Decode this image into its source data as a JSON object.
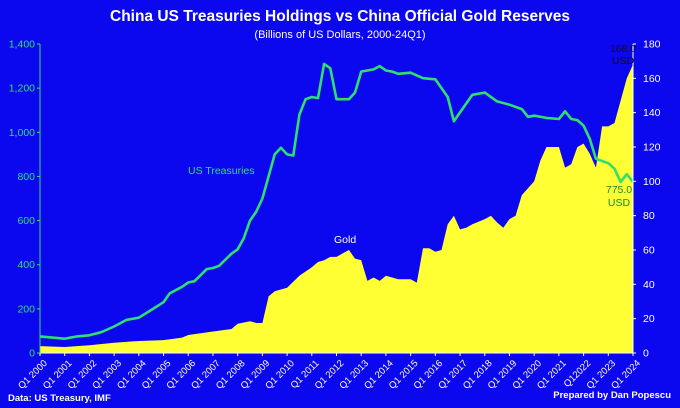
{
  "chart_data": {
    "type": "line+area",
    "title": "China US Treasuries Holdings vs China Official Gold Reserves",
    "subtitle": "(Billions of US Dollars, 2000-24Q1)",
    "left_axis": {
      "ylim": [
        0,
        1400
      ],
      "ticks": [
        "0",
        "200",
        "400",
        "600",
        "800",
        "1,000",
        "1,200",
        "1,400"
      ],
      "color": "#2fe06a"
    },
    "right_axis": {
      "ylim": [
        0,
        180
      ],
      "ticks": [
        "0",
        "20",
        "40",
        "60",
        "80",
        "100",
        "120",
        "140",
        "160",
        "180"
      ],
      "color": "#ffffff"
    },
    "x_ticks": [
      "Q1 2000",
      "Q1 2001",
      "Q1 2002",
      "Q1 2003",
      "Q1 2004",
      "Q1 2005",
      "Q1 2006",
      "Q1 2007",
      "Q1 2008",
      "Q1 2009",
      "Q1 2010",
      "Q1 2011",
      "Q1 2012",
      "Q1 2013",
      "Q1 2014",
      "Q1 2015",
      "Q1 2016",
      "Q1 2017",
      "Q1 2018",
      "Q1 2019",
      "Q1 2020",
      "Q1 2021",
      "Q12022",
      "Q1 2023",
      "Q1 2024"
    ],
    "x_range": [
      2000.0,
      2024.0
    ],
    "series": [
      {
        "name": "US Treasuries",
        "axis": "left",
        "style": "line",
        "color": "#2fe06a",
        "x": [
          2000.0,
          2000.5,
          2001.0,
          2001.5,
          2002.0,
          2002.5,
          2003.0,
          2003.5,
          2004.0,
          2004.5,
          2005.0,
          2005.25,
          2005.75,
          2006.0,
          2006.25,
          2006.75,
          2007.0,
          2007.25,
          2007.75,
          2008.0,
          2008.25,
          2008.5,
          2008.75,
          2009.0,
          2009.25,
          2009.5,
          2009.75,
          2010.0,
          2010.25,
          2010.5,
          2010.75,
          2011.0,
          2011.25,
          2011.5,
          2011.75,
          2012.0,
          2012.5,
          2012.75,
          2013.0,
          2013.5,
          2013.75,
          2014.0,
          2014.25,
          2014.5,
          2015.0,
          2015.5,
          2016.0,
          2016.5,
          2016.75,
          2017.0,
          2017.5,
          2018.0,
          2018.5,
          2019.0,
          2019.5,
          2019.75,
          2020.0,
          2020.5,
          2021.0,
          2021.25,
          2021.5,
          2021.75,
          2022.0,
          2022.25,
          2022.5,
          2022.75,
          2023.0,
          2023.25,
          2023.5,
          2023.75,
          2024.0
        ],
        "values": [
          75,
          70,
          65,
          75,
          80,
          95,
          120,
          150,
          160,
          195,
          230,
          270,
          300,
          320,
          325,
          380,
          385,
          395,
          450,
          470,
          520,
          600,
          640,
          700,
          800,
          900,
          930,
          900,
          895,
          1080,
          1150,
          1160,
          1155,
          1310,
          1290,
          1150,
          1150,
          1180,
          1275,
          1285,
          1300,
          1280,
          1275,
          1265,
          1270,
          1245,
          1240,
          1160,
          1050,
          1090,
          1170,
          1180,
          1140,
          1125,
          1105,
          1070,
          1075,
          1065,
          1060,
          1095,
          1060,
          1055,
          1030,
          970,
          880,
          870,
          860,
          835,
          775,
          810,
          775
        ]
      },
      {
        "name": "Gold",
        "axis": "right",
        "style": "area",
        "color": "#ffff33",
        "x": [
          2000.0,
          2001.0,
          2002.0,
          2003.0,
          2004.0,
          2005.0,
          2005.75,
          2006.0,
          2006.5,
          2007.0,
          2007.75,
          2008.0,
          2008.5,
          2008.75,
          2009.0,
          2009.25,
          2009.5,
          2010.0,
          2010.5,
          2011.0,
          2011.25,
          2011.5,
          2011.75,
          2012.0,
          2012.25,
          2012.5,
          2012.75,
          2013.0,
          2013.25,
          2013.5,
          2013.75,
          2014.0,
          2014.5,
          2015.0,
          2015.25,
          2015.5,
          2015.75,
          2016.0,
          2016.25,
          2016.5,
          2016.75,
          2017.0,
          2017.25,
          2017.5,
          2018.0,
          2018.25,
          2018.5,
          2018.75,
          2019.0,
          2019.25,
          2019.5,
          2019.75,
          2020.0,
          2020.25,
          2020.5,
          2020.75,
          2021.0,
          2021.25,
          2021.5,
          2021.75,
          2022.0,
          2022.25,
          2022.5,
          2022.75,
          2023.0,
          2023.25,
          2023.5,
          2023.75,
          2024.0
        ],
        "values": [
          4,
          3.5,
          4.5,
          6,
          7,
          7.5,
          9,
          10.5,
          11.5,
          12.5,
          14,
          17,
          18.5,
          17.5,
          17.5,
          33,
          36,
          38,
          45,
          50,
          53,
          54,
          56,
          56,
          58,
          60,
          55,
          54,
          42,
          44,
          42,
          45,
          43,
          43,
          41,
          61,
          61,
          59,
          60,
          75,
          80,
          72,
          73,
          75,
          78,
          80,
          76,
          73,
          78,
          80,
          92,
          96,
          100,
          112,
          120,
          120,
          120,
          108,
          110,
          120,
          122,
          116,
          108,
          132,
          132,
          134,
          147,
          160,
          168
        ]
      }
    ],
    "annotations": {
      "us_label": "US Treasuries",
      "gold_label": "Gold",
      "gold_end_value": "168.0",
      "gold_end_unit": "USD",
      "us_end_value": "775.0",
      "us_end_unit": "USD"
    },
    "footer_left": "Data: US Treasury, IMF",
    "footer_right": "Prepared by Dan Popescu",
    "grid": false,
    "legend": "none"
  }
}
